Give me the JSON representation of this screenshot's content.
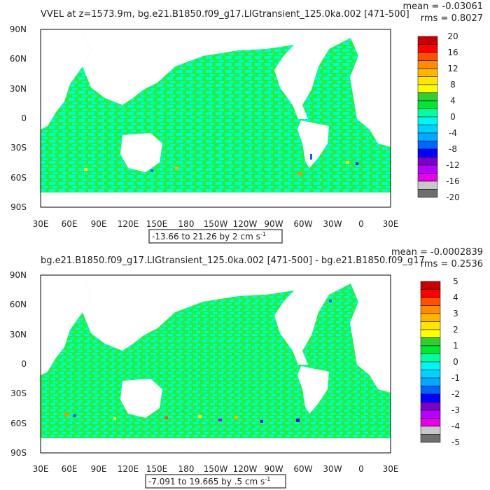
{
  "chart_data": [
    {
      "type": "heatmap",
      "title": "VVEL at z=1573.9m, bg.e21.B1850.f09_g17.LIGtransient_125.0ka.002 [471-500]",
      "stats": [
        "mean = -0.03061",
        "rms = 0.8027"
      ],
      "x_ticks": [
        "30E",
        "60E",
        "90E",
        "120E",
        "150E",
        "180",
        "150W",
        "120W",
        "90W",
        "60W",
        "30W",
        "0",
        "30E"
      ],
      "y_ticks": [
        "90N",
        "60N",
        "30N",
        "0",
        "30S",
        "60S",
        "90S"
      ],
      "range_note": "-13.66 to 21.26 by 2 cm s",
      "range_exp": "-1",
      "colorbar_labels": [
        "20",
        "16",
        "12",
        "8",
        "4",
        "0",
        "-4",
        "-8",
        "-12",
        "-16",
        "-20"
      ],
      "field_extremes": [
        -13.66,
        21.26
      ]
    },
    {
      "type": "heatmap",
      "title": "bg.e21.B1850.f09_g17.LIGtransient_125.0ka.002 [471-500] - bg.e21.B1850.f09_g17",
      "stats": [
        "mean = -0.0002839",
        "rms = 0.2536"
      ],
      "x_ticks": [
        "30E",
        "60E",
        "90E",
        "120E",
        "150E",
        "180",
        "150W",
        "120W",
        "90W",
        "60W",
        "30W",
        "0",
        "30E"
      ],
      "y_ticks": [
        "90N",
        "60N",
        "30N",
        "0",
        "30S",
        "60S",
        "90S"
      ],
      "range_note": "-7.091 to 19.665 by .5 cm s",
      "range_exp": "-1",
      "colorbar_labels": [
        "5",
        "4",
        "3",
        "2",
        "1",
        "0",
        "-1",
        "-2",
        "-3",
        "-4",
        "-5"
      ],
      "field_extremes": [
        -7.091,
        19.665
      ]
    }
  ],
  "colors": {
    "ocean_light": "#00ffcc",
    "ocean_green": "#22ee44",
    "land": "#ffffff",
    "frame": "#000000",
    "colorbar": [
      "#c80000",
      "#ff0000",
      "#ff5000",
      "#ff8c00",
      "#ffb400",
      "#ffe600",
      "#ffff00",
      "#32cd32",
      "#00e632",
      "#00ffa0",
      "#00f5f5",
      "#00d2ff",
      "#00aaff",
      "#0064ff",
      "#0000ff",
      "#7800c8",
      "#b400ff",
      "#e600e6",
      "#c8c8c8",
      "#6e6e6e"
    ]
  }
}
